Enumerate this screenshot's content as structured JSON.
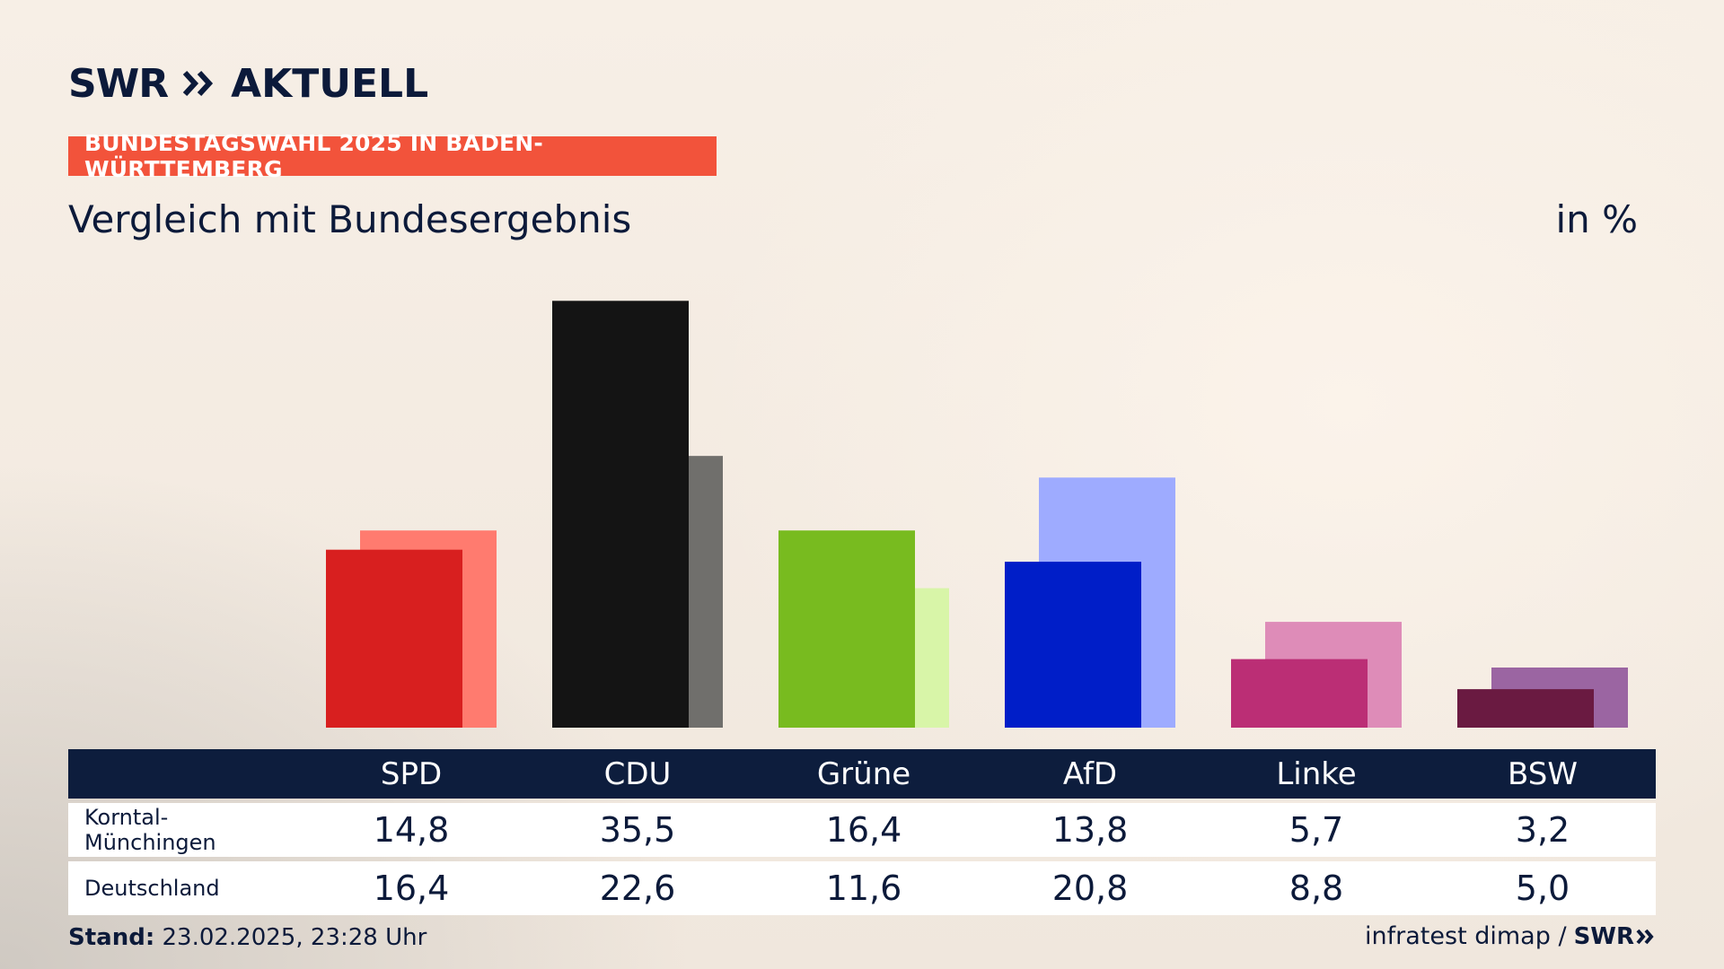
{
  "header": {
    "logo_swr": "SWR",
    "logo_aktuell": "AKTUELL",
    "banner": "BUNDESTAGSWAHL 2025 IN BADEN-WÜRTTEMBERG",
    "subtitle": "Vergleich mit Bundesergebnis",
    "unit": "in %"
  },
  "table": {
    "rows": [
      {
        "label": "Korntal-Münchingen",
        "values": [
          "14,8",
          "35,5",
          "16,4",
          "13,8",
          "5,7",
          "3,2"
        ]
      },
      {
        "label": "Deutschland",
        "values": [
          "16,4",
          "22,6",
          "11,6",
          "20,8",
          "8,8",
          "5,0"
        ]
      }
    ]
  },
  "footer": {
    "stand_label": "Stand:",
    "stand_value": "23.02.2025, 23:28 Uhr",
    "source": "infratest dimap /",
    "logo": "SWR"
  },
  "chart_data": {
    "type": "bar",
    "categories": [
      "SPD",
      "CDU",
      "Grüne",
      "AfD",
      "Linke",
      "BSW"
    ],
    "series": [
      {
        "name": "Korntal-Münchingen",
        "values": [
          14.8,
          35.5,
          16.4,
          13.8,
          5.7,
          3.2
        ]
      },
      {
        "name": "Deutschland",
        "values": [
          16.4,
          22.6,
          11.6,
          20.8,
          8.8,
          5.0
        ]
      }
    ],
    "colors": {
      "primary": [
        "#d81f1f",
        "#141414",
        "#78bb1f",
        "#001ec8",
        "#bb2e75",
        "#6a1a41"
      ],
      "secondary": [
        "#ff7b6f",
        "#706f6c",
        "#d8f5a8",
        "#9eabff",
        "#de8cb8",
        "#9b65a2"
      ]
    },
    "ylim": [
      0,
      36
    ],
    "grid": false
  }
}
